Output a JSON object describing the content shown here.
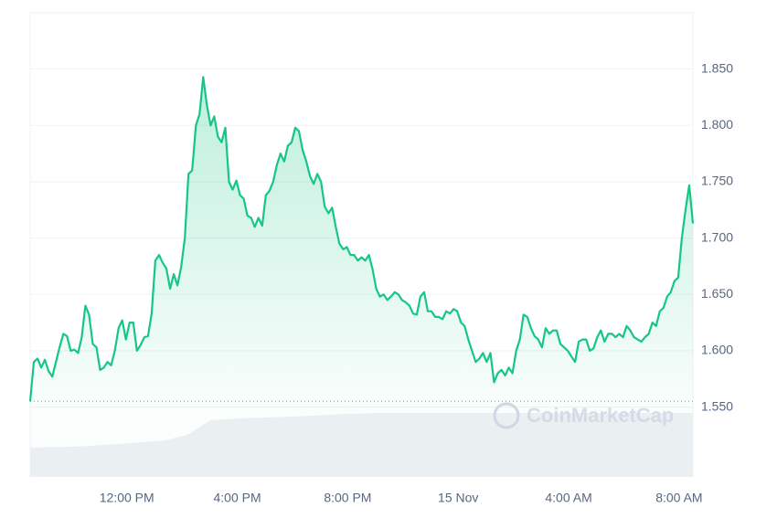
{
  "chart_data": {
    "type": "line",
    "watermark": "CoinMarketCap",
    "color": "#16c784",
    "grid": true,
    "x": [
      510,
      518,
      526,
      534,
      542,
      550,
      558,
      566,
      574,
      582,
      590,
      598,
      606,
      614,
      622,
      630,
      638,
      646,
      654,
      662,
      670,
      678,
      686,
      694,
      702,
      710,
      718,
      726,
      734,
      742,
      750,
      758,
      766,
      774,
      782,
      790,
      798,
      806,
      814,
      822,
      830,
      838,
      846,
      854,
      862,
      870,
      878,
      886,
      894,
      902,
      910,
      918,
      926,
      934,
      942,
      950,
      958,
      966,
      974,
      982,
      990,
      998,
      1006,
      1014,
      1022,
      1030,
      1038,
      1046,
      1054,
      1062,
      1070,
      1078,
      1086,
      1094,
      1102,
      1110,
      1118,
      1126,
      1134,
      1142,
      1150,
      1158,
      1166,
      1174,
      1182,
      1190,
      1198,
      1206,
      1214,
      1222,
      1230,
      1238,
      1246,
      1254,
      1262,
      1270,
      1278,
      1286,
      1294,
      1302,
      1310,
      1318,
      1326,
      1334,
      1342,
      1350,
      1358,
      1366,
      1374,
      1382,
      1390,
      1398,
      1406,
      1414,
      1422,
      1430,
      1438,
      1446,
      1454,
      1462,
      1470,
      1478,
      1486,
      1494,
      1502,
      1510,
      1518,
      1526,
      1534,
      1542,
      1550,
      1558,
      1566,
      1574,
      1582,
      1590,
      1598,
      1606,
      1614,
      1622,
      1630,
      1638,
      1646,
      1654,
      1662,
      1670,
      1678,
      1686,
      1694,
      1702,
      1710,
      1718,
      1726,
      1734,
      1742,
      1750,
      1758,
      1766,
      1774,
      1782,
      1790,
      1798,
      1806,
      1814,
      1822,
      1830,
      1838,
      1846,
      1854,
      1862,
      1870,
      1878,
      1886,
      1894,
      1902,
      1910,
      1918,
      1926,
      1934,
      1942,
      1950
    ],
    "values": [
      1.555,
      1.59,
      1.593,
      1.585,
      1.592,
      1.582,
      1.577,
      1.59,
      1.603,
      1.615,
      1.613,
      1.6,
      1.601,
      1.598,
      1.612,
      1.64,
      1.632,
      1.606,
      1.603,
      1.583,
      1.585,
      1.59,
      1.587,
      1.6,
      1.62,
      1.627,
      1.61,
      1.625,
      1.625,
      1.6,
      1.605,
      1.612,
      1.613,
      1.633,
      1.68,
      1.685,
      1.678,
      1.673,
      1.655,
      1.668,
      1.658,
      1.674,
      1.7,
      1.757,
      1.76,
      1.8,
      1.81,
      1.843,
      1.818,
      1.8,
      1.808,
      1.79,
      1.785,
      1.798,
      1.75,
      1.743,
      1.751,
      1.738,
      1.735,
      1.72,
      1.718,
      1.71,
      1.718,
      1.711,
      1.738,
      1.742,
      1.75,
      1.765,
      1.775,
      1.768,
      1.782,
      1.785,
      1.798,
      1.795,
      1.778,
      1.768,
      1.755,
      1.748,
      1.757,
      1.75,
      1.728,
      1.722,
      1.727,
      1.71,
      1.695,
      1.69,
      1.692,
      1.685,
      1.685,
      1.68,
      1.683,
      1.68,
      1.685,
      1.672,
      1.655,
      1.648,
      1.65,
      1.645,
      1.648,
      1.652,
      1.65,
      1.645,
      1.643,
      1.64,
      1.633,
      1.632,
      1.648,
      1.652,
      1.635,
      1.635,
      1.63,
      1.63,
      1.628,
      1.635,
      1.633,
      1.637,
      1.635,
      1.625,
      1.622,
      1.61,
      1.6,
      1.59,
      1.593,
      1.598,
      1.59,
      1.598,
      1.572,
      1.58,
      1.583,
      1.578,
      1.585,
      1.58,
      1.6,
      1.61,
      1.632,
      1.63,
      1.62,
      1.613,
      1.61,
      1.603,
      1.62,
      1.615,
      1.618,
      1.618,
      1.606,
      1.603,
      1.6,
      1.595,
      1.59,
      1.608,
      1.61,
      1.61,
      1.6,
      1.602,
      1.612,
      1.618,
      1.608,
      1.615,
      1.615,
      1.612,
      1.615,
      1.612,
      1.622,
      1.618,
      1.612,
      1.61,
      1.608,
      1.612,
      1.615,
      1.625,
      1.622,
      1.635,
      1.638,
      1.648,
      1.652,
      1.662,
      1.665,
      1.7,
      1.725,
      1.747,
      1.713
    ],
    "xlim": [
      510,
      1950
    ],
    "xticks": [
      {
        "value": 720,
        "label": "12:00 PM"
      },
      {
        "value": 960,
        "label": "4:00 PM"
      },
      {
        "value": 1200,
        "label": "8:00 PM"
      },
      {
        "value": 1440,
        "label": "15 Nov"
      },
      {
        "value": 1680,
        "label": "4:00 AM"
      },
      {
        "value": 1920,
        "label": "8:00 AM"
      }
    ],
    "ylim": [
      1.488,
      1.9
    ],
    "yticks": [
      {
        "value": 1.55,
        "label": "1.550"
      },
      {
        "value": 1.6,
        "label": "1.600"
      },
      {
        "value": 1.65,
        "label": "1.650"
      },
      {
        "value": 1.7,
        "label": "1.700"
      },
      {
        "value": 1.75,
        "label": "1.750"
      },
      {
        "value": 1.8,
        "label": "1.800"
      },
      {
        "value": 1.85,
        "label": "1.850"
      }
    ]
  }
}
